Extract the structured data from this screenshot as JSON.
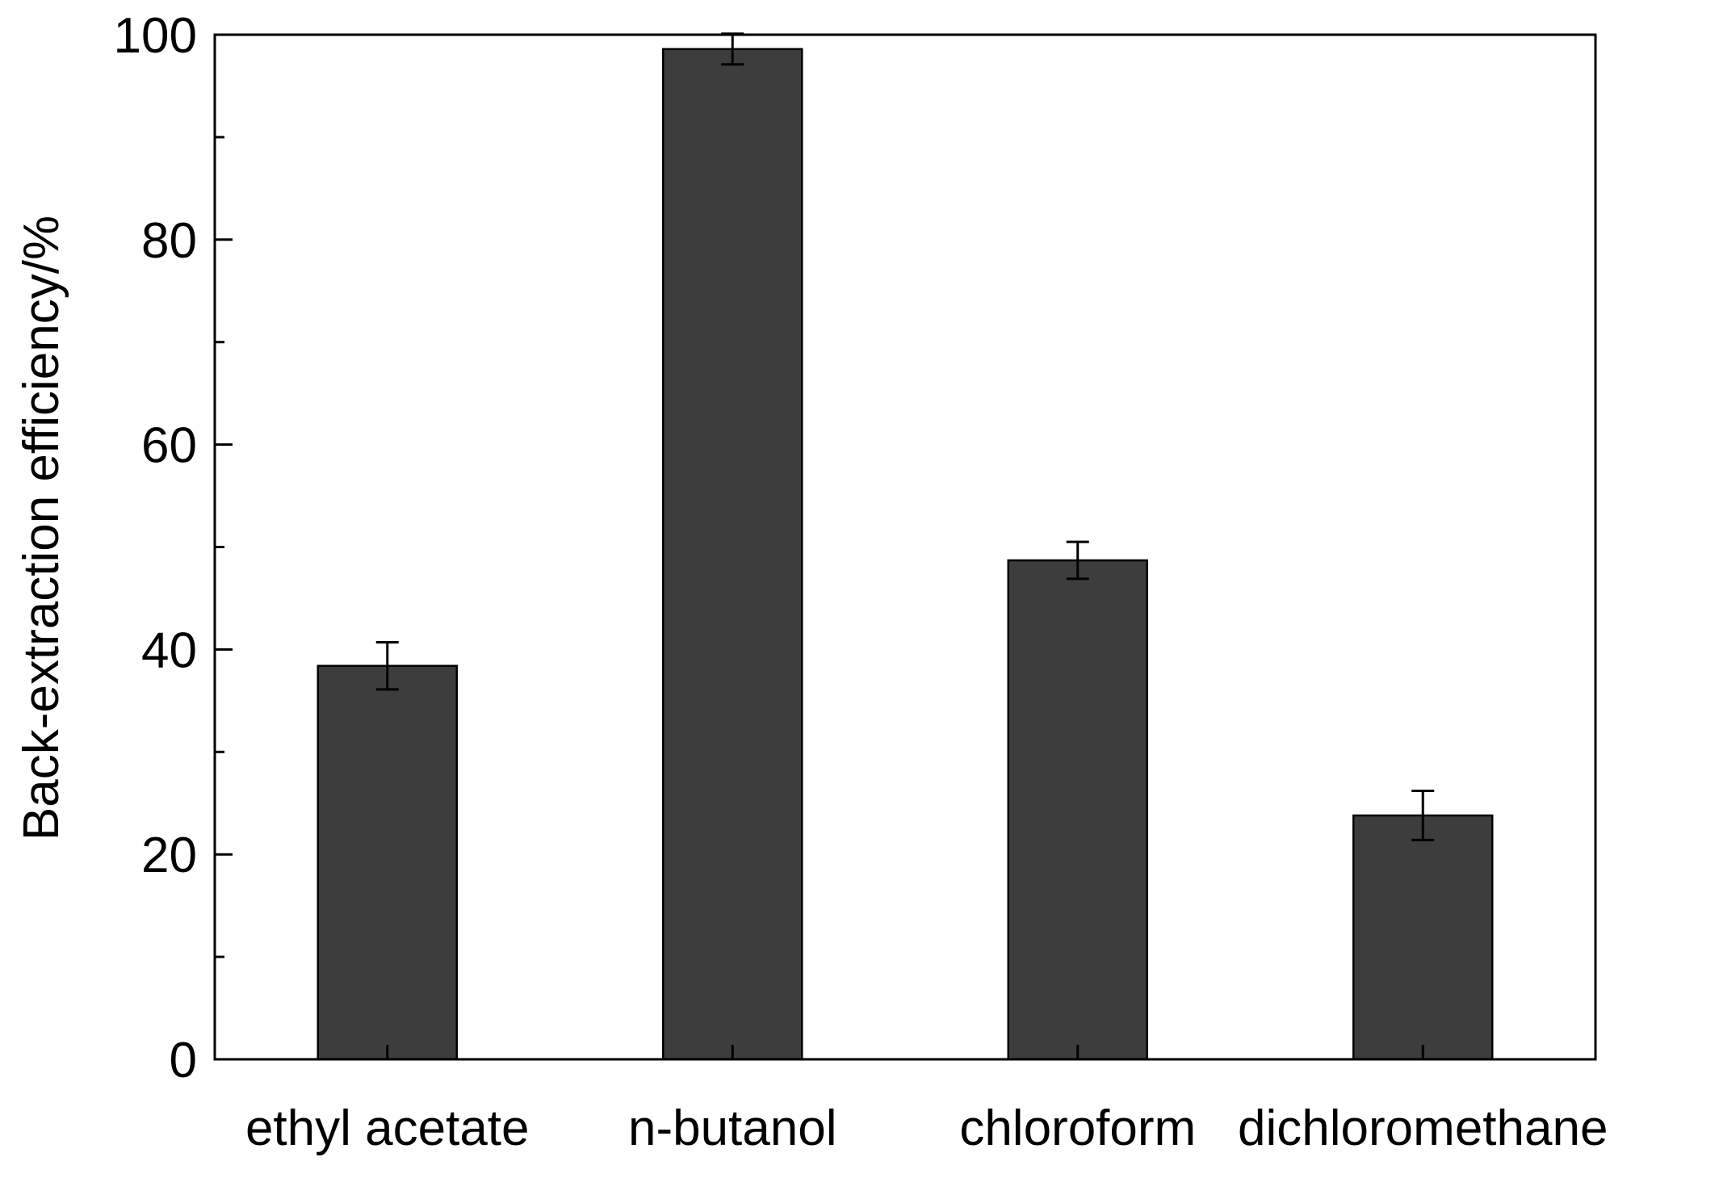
{
  "chart_data": {
    "type": "bar",
    "title": "",
    "xlabel": "",
    "ylabel": "Back-extraction efficiency/%",
    "categories": [
      "ethyl acetate",
      "n-butanol",
      "chloroform",
      "dichloromethane"
    ],
    "series": [
      {
        "values": [
          38.4,
          98.6,
          48.7,
          23.8
        ],
        "errors": [
          2.3,
          1.5,
          1.8,
          2.4
        ]
      }
    ],
    "ylim": [
      0,
      100
    ],
    "yticks_major": [
      0,
      20,
      40,
      60,
      80,
      100
    ],
    "yticks_minor": [
      10,
      30,
      50,
      70,
      90
    ],
    "grid": false,
    "legend": "none",
    "colors": {
      "bar_fill": "#3d3d3d",
      "bar_stroke": "#000000",
      "axis": "#000000"
    }
  }
}
